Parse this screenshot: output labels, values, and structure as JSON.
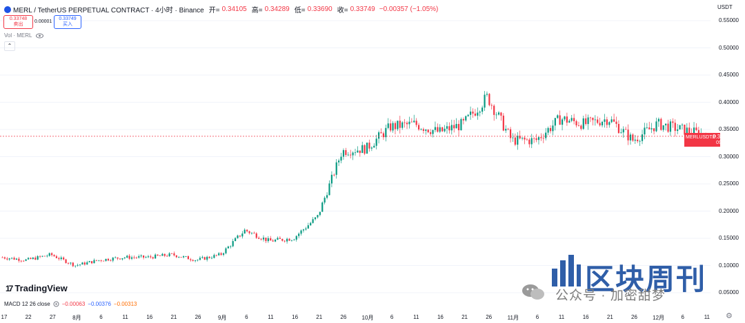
{
  "header": {
    "symbol": "MERL / TetherUS PERPETUAL CONTRACT · 4小时 · Binance",
    "open_label": "开=",
    "open": "0.34105",
    "high_label": "高=",
    "high": "0.34289",
    "low_label": "低=",
    "low": "0.33690",
    "close_label": "收=",
    "close": "0.33749",
    "change": "−0.00357 (−1.05%)"
  },
  "trade": {
    "sell_price": "0.33748",
    "sell_label": "卖出",
    "spread": "0.00001",
    "buy_price": "0.33749",
    "buy_label": "买入"
  },
  "volume_label": "Vol · MERL",
  "collapse_symbol": "⌃",
  "price_scale": {
    "currency": "USDT",
    "ticks": [
      "0.55000",
      "0.50000",
      "0.45000",
      "0.40000",
      "0.35000",
      "0.30000",
      "0.25000",
      "0.20000",
      "0.15000",
      "0.10000",
      "0.05000"
    ]
  },
  "time_axis": [
    "17",
    "22",
    "27",
    "8月",
    "6",
    "11",
    "16",
    "21",
    "26",
    "9月",
    "6",
    "11",
    "16",
    "21",
    "26",
    "10月",
    "6",
    "11",
    "16",
    "21",
    "26",
    "11月",
    "6",
    "11",
    "16",
    "21",
    "26",
    "12月",
    "6",
    "11"
  ],
  "last_price_tag": {
    "symbol": "MERLUSDT.P",
    "price": "0.33749",
    "countdown": "09:45"
  },
  "brand": {
    "mark": "17",
    "name": "TradingView"
  },
  "macd": {
    "label": "MACD 12 26 close",
    "v1": "−0.00063",
    "v2": "−0.00376",
    "v3": "−0.00313"
  },
  "watermark": {
    "title": "区块周刊",
    "subtitle": "公众号 · 加密甜梦"
  },
  "colors": {
    "up": "#089981",
    "down": "#f23645",
    "accent": "#2962ff",
    "watermark": "#2f5ea8"
  },
  "chart_data": {
    "type": "line",
    "series": [
      {
        "x": [
          "17",
          "22",
          "27",
          "8月",
          "6",
          "11",
          "16",
          "21",
          "26",
          "9月",
          "6",
          "11",
          "16",
          "21",
          "26",
          "10月",
          "6",
          "11",
          "16",
          "21",
          "26",
          "11月",
          "6",
          "11",
          "16",
          "21",
          "26",
          "12月",
          "6",
          "11"
        ],
        "values": [
          0.115,
          0.11,
          0.12,
          0.1,
          0.11,
          0.115,
          0.115,
          0.12,
          0.11,
          0.12,
          0.165,
          0.145,
          0.15,
          0.19,
          0.31,
          0.315,
          0.355,
          0.36,
          0.345,
          0.36,
          0.41,
          0.33,
          0.33,
          0.37,
          0.36,
          0.37,
          0.33,
          0.36,
          0.35,
          0.34
        ]
      }
    ],
    "ylim": [
      0.05,
      0.55
    ],
    "last_price": 0.33749
  }
}
